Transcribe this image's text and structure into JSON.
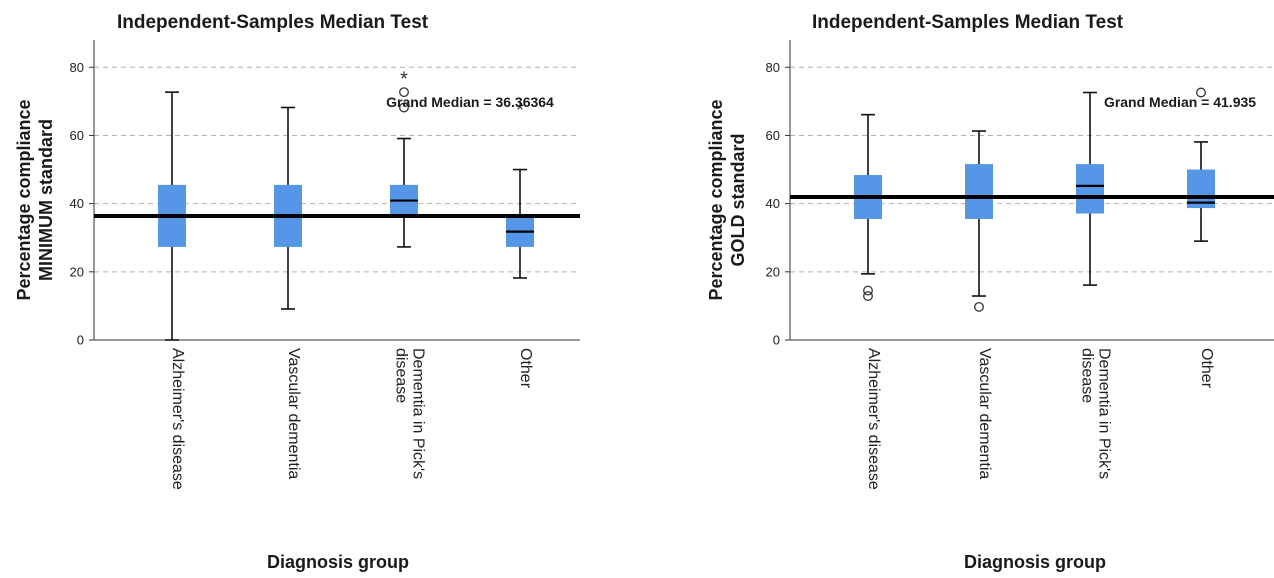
{
  "chart_data": [
    {
      "type": "boxplot",
      "title": "Independent-Samples Median Test",
      "ylabel": [
        "Percentage compliance",
        "MINIMUM standard"
      ],
      "xlabel": "Diagnosis group",
      "ylim": [
        0,
        88
      ],
      "yticks": [
        0,
        20,
        40,
        60,
        80
      ],
      "grid": true,
      "categories": [
        [
          "Alzheimer's disease"
        ],
        [
          "Vascular dementia"
        ],
        [
          "Dementia in Pick's",
          "disease"
        ],
        [
          "Other"
        ]
      ],
      "boxes": [
        {
          "whisker_low": 0,
          "q1": 27.3,
          "median": 36.4,
          "q3": 45.5,
          "whisker_high": 72.7,
          "outliers": [],
          "extremes": []
        },
        {
          "whisker_low": 9.1,
          "q1": 27.3,
          "median": 36.4,
          "q3": 45.5,
          "whisker_high": 68.2,
          "outliers": [],
          "extremes": []
        },
        {
          "whisker_low": 27.3,
          "q1": 36.4,
          "median": 40.9,
          "q3": 45.5,
          "whisker_high": 59.1,
          "outliers": [
            68.2,
            72.7
          ],
          "extremes": [
            77.3
          ]
        },
        {
          "whisker_low": 18.2,
          "q1": 27.3,
          "median": 31.8,
          "q3": 36.4,
          "whisker_high": 50.0,
          "outliers": [],
          "extremes": [
            68.2
          ]
        }
      ],
      "grand_median": 36.36364,
      "grand_median_label": "Grand Median = 36.36364",
      "box_color": "#5596e6"
    },
    {
      "type": "boxplot",
      "title": "Independent-Samples Median Test",
      "ylabel": [
        "Percentage compliance",
        "GOLD standard"
      ],
      "xlabel": "Diagnosis group",
      "ylim": [
        0,
        88
      ],
      "yticks": [
        0,
        20,
        40,
        60,
        80
      ],
      "grid": true,
      "categories": [
        [
          "Alzheimer's disease"
        ],
        [
          "Vascular dementia"
        ],
        [
          "Dementia in Pick's",
          "disease"
        ],
        [
          "Other"
        ]
      ],
      "boxes": [
        {
          "whisker_low": 19.4,
          "q1": 35.5,
          "median": 41.9,
          "q3": 48.4,
          "whisker_high": 66.1,
          "outliers": [
            12.9,
            14.5
          ],
          "extremes": []
        },
        {
          "whisker_low": 12.9,
          "q1": 35.5,
          "median": 41.9,
          "q3": 51.6,
          "whisker_high": 61.3,
          "outliers": [
            9.7
          ],
          "extremes": []
        },
        {
          "whisker_low": 16.1,
          "q1": 37.1,
          "median": 45.2,
          "q3": 51.6,
          "whisker_high": 72.6,
          "outliers": [],
          "extremes": []
        },
        {
          "whisker_low": 29.0,
          "q1": 38.7,
          "median": 40.3,
          "q3": 50.0,
          "whisker_high": 58.1,
          "outliers": [
            72.6
          ],
          "extremes": []
        }
      ],
      "grand_median": 41.935,
      "grand_median_label": "Grand Median = 41.935",
      "box_color": "#5596e6"
    }
  ]
}
